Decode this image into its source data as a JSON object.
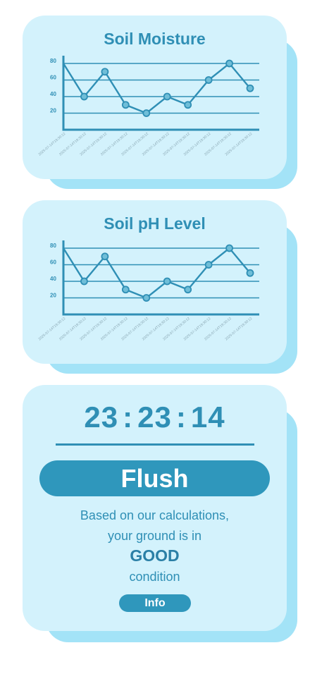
{
  "charts": [
    {
      "chart_data": {
        "type": "line",
        "title": "Soil Moisture",
        "xlabel": "",
        "ylabel": "",
        "x": [
          "2025-07-14T19:30:12",
          "2025-07-14T19:30:12",
          "2025-07-14T19:30:12",
          "2025-07-14T19:30:12",
          "2025-07-14T19:30:12",
          "2025-07-14T19:30:12",
          "2025-07-14T19:30:12",
          "2025-07-14T19:30:12",
          "2025-07-14T19:30:12",
          "2025-07-14T19:30:12"
        ],
        "series": [
          {
            "values": [
              80,
              40,
              70,
              30,
              20,
              40,
              30,
              60,
              80,
              50
            ]
          }
        ],
        "ylim": [
          0,
          90
        ],
        "yticks": [
          "20",
          "40",
          "60",
          "80"
        ],
        "grid": true,
        "colors": {
          "line": "#2f8fb5",
          "point": "#6fbed8"
        }
      }
    },
    {
      "chart_data": {
        "type": "line",
        "title": "Soil pH Level",
        "xlabel": "",
        "ylabel": "",
        "x": [
          "2025-07-14T19:30:12",
          "2025-07-14T19:30:12",
          "2025-07-14T19:30:12",
          "2025-07-14T19:30:12",
          "2025-07-14T19:30:12",
          "2025-07-14T19:30:12",
          "2025-07-14T19:30:12",
          "2025-07-14T19:30:12",
          "2025-07-14T19:30:12",
          "2025-07-14T19:30:12"
        ],
        "series": [
          {
            "values": [
              80,
              40,
              70,
              30,
              20,
              40,
              30,
              60,
              80,
              50
            ]
          }
        ],
        "ylim": [
          0,
          90
        ],
        "yticks": [
          "20",
          "40",
          "60",
          "80"
        ],
        "grid": true,
        "colors": {
          "line": "#2f8fb5",
          "point": "#6fbed8"
        }
      }
    }
  ],
  "status": {
    "timer": {
      "hours": "23",
      "minutes": "23",
      "seconds": "14",
      "separator": ":"
    },
    "action_label": "Flush",
    "message_line1": "Based on our calculations,",
    "message_line2": "your ground is in",
    "condition": "GOOD",
    "message_line3": "condition",
    "info_label": "Info"
  },
  "colors": {
    "card_bg": "#d3f2fc",
    "card_shadow": "#a3e3f7",
    "accent": "#2f8fb5",
    "button_bg": "#2f97bc"
  }
}
